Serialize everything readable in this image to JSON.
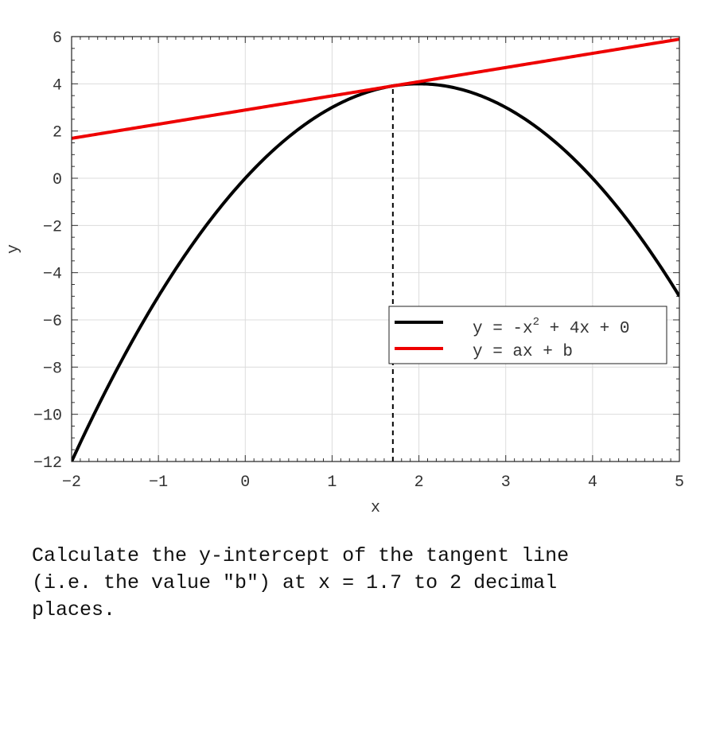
{
  "chart_data": {
    "type": "line",
    "xlabel": "x",
    "ylabel": "y",
    "xlim": [
      -2,
      5
    ],
    "ylim": [
      -12,
      6
    ],
    "x_ticks": [
      -2,
      -1,
      0,
      1,
      2,
      3,
      4,
      5
    ],
    "y_ticks": [
      -12,
      -10,
      -8,
      -6,
      -4,
      -2,
      0,
      2,
      4,
      6
    ],
    "x_tick_labels": [
      "−2",
      "−1",
      "0",
      "1",
      "2",
      "3",
      "4",
      "5"
    ],
    "y_tick_labels": [
      "−12",
      "−10",
      "−8",
      "−6",
      "−4",
      "−2",
      "0",
      "2",
      "4",
      "6"
    ],
    "grid": true,
    "legend_position": "lower-right",
    "series": [
      {
        "name_prefix": "y = -x",
        "name_sup": "2",
        "name_suffix": " + 4x + 0",
        "function": {
          "kind": "quadratic",
          "a": -1,
          "b": 4,
          "c": 0
        },
        "color": "#000000"
      },
      {
        "name": "y = ax + b",
        "function": {
          "kind": "linear",
          "slope": 0.6,
          "intercept": 2.89
        },
        "color": "#ee0000"
      }
    ],
    "vertical_marker": {
      "x": 1.7,
      "y_from": -12,
      "y_to": 3.91,
      "style": "dashed",
      "color": "#000000"
    }
  },
  "question": "Calculate the y-intercept of the tangent line\n(i.e. the value \"b\") at x = 1.7 to 2 decimal\nplaces."
}
